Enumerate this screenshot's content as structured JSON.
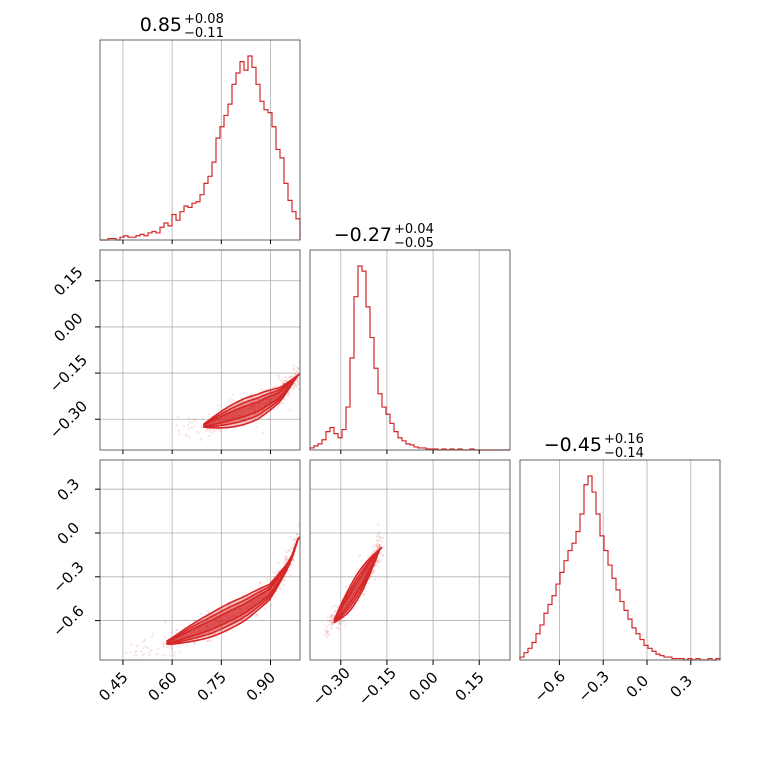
{
  "chart_data": {
    "type": "corner",
    "color": "#d62728",
    "parameters": [
      {
        "range": [
          0.38,
          0.99
        ],
        "ticks": [
          "0.45",
          "0.60",
          "0.75",
          "0.90"
        ],
        "tick_values": [
          0.45,
          0.6,
          0.75,
          0.9
        ]
      },
      {
        "range": [
          -0.4,
          0.25
        ],
        "ticks": [
          "−0.30",
          "−0.15",
          "0.00",
          "0.15"
        ],
        "tick_values": [
          -0.3,
          -0.15,
          0.0,
          0.15
        ]
      },
      {
        "range": [
          -0.87,
          0.5
        ],
        "ticks": [
          "−0.6",
          "−0.3",
          "0.0",
          "0.3"
        ],
        "tick_values": [
          -0.6,
          -0.3,
          0.0,
          0.3
        ]
      }
    ],
    "titles": [
      {
        "median": "0.85",
        "plus": "+0.08",
        "minus": "−0.11"
      },
      {
        "median": "−0.27",
        "plus": "+0.04",
        "minus": "−0.05"
      },
      {
        "median": "−0.45",
        "plus": "+0.16",
        "minus": "−0.14"
      }
    ],
    "histograms": [
      {
        "param": 0,
        "bins": 50,
        "counts": [
          0,
          0,
          1,
          1,
          0,
          2,
          3,
          2,
          2,
          3,
          4,
          3,
          5,
          6,
          5,
          9,
          12,
          10,
          18,
          14,
          20,
          24,
          23,
          26,
          27,
          32,
          40,
          45,
          55,
          72,
          80,
          88,
          96,
          110,
          118,
          126,
          120,
          130,
          122,
          110,
          98,
          92,
          90,
          80,
          64,
          58,
          40,
          28,
          20,
          15
        ]
      },
      {
        "param": 1,
        "bins": 50,
        "counts": [
          2,
          4,
          6,
          10,
          18,
          22,
          16,
          12,
          20,
          42,
          90,
          150,
          180,
          175,
          140,
          110,
          80,
          55,
          42,
          35,
          26,
          18,
          12,
          9,
          6,
          5,
          3,
          2,
          2,
          1,
          1,
          1,
          0,
          1,
          0,
          1,
          0,
          1,
          0,
          0,
          1,
          0,
          0,
          0,
          0,
          0,
          0,
          0,
          0,
          0
        ]
      },
      {
        "param": 2,
        "bins": 50,
        "counts": [
          2,
          5,
          8,
          12,
          18,
          24,
          32,
          38,
          44,
          52,
          60,
          68,
          75,
          80,
          88,
          100,
          120,
          126,
          115,
          100,
          85,
          75,
          65,
          56,
          48,
          40,
          34,
          28,
          22,
          18,
          14,
          10,
          8,
          6,
          4,
          3,
          2,
          2,
          1,
          1,
          1,
          0,
          1,
          0,
          1,
          0,
          0,
          1,
          0,
          1
        ]
      }
    ],
    "joint": [
      {
        "x_param": 0,
        "y_param": 1,
        "trend": [
          [
            0.6,
            -0.34
          ],
          [
            0.7,
            -0.32
          ],
          [
            0.78,
            -0.29
          ],
          [
            0.86,
            -0.26
          ],
          [
            0.93,
            -0.22
          ],
          [
            0.99,
            -0.15
          ]
        ]
      },
      {
        "x_param": 0,
        "y_param": 2,
        "trend": [
          [
            0.45,
            -0.84
          ],
          [
            0.6,
            -0.74
          ],
          [
            0.72,
            -0.63
          ],
          [
            0.82,
            -0.52
          ],
          [
            0.9,
            -0.4
          ],
          [
            0.96,
            -0.2
          ],
          [
            0.99,
            0.0
          ]
        ]
      },
      {
        "x_param": 1,
        "y_param": 2,
        "trend": [
          [
            -0.37,
            -0.72
          ],
          [
            -0.32,
            -0.6
          ],
          [
            -0.27,
            -0.45
          ],
          [
            -0.22,
            -0.28
          ],
          [
            -0.17,
            -0.1
          ]
        ]
      }
    ]
  }
}
